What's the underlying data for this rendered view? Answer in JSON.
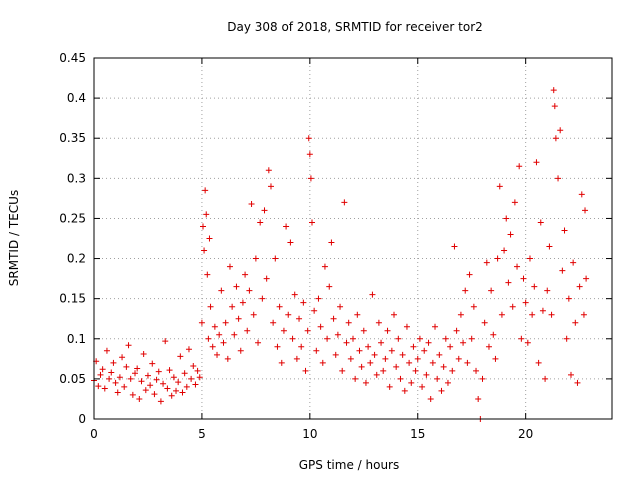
{
  "chart_data": {
    "type": "scatter",
    "title": "Day 308 of 2018, SRMTID for receiver tor2",
    "xlabel": "GPS time / hours",
    "ylabel": "SRMTID / TECUs",
    "xlim": [
      0,
      24
    ],
    "ylim": [
      0,
      0.45
    ],
    "xticks": [
      0,
      5,
      10,
      15,
      20
    ],
    "yticks": [
      0,
      0.05,
      0.1,
      0.15,
      0.2,
      0.25,
      0.3,
      0.35,
      0.4,
      0.45
    ],
    "ytick_labels": [
      "0",
      "0.05",
      "0.1",
      "0.15",
      "0.2",
      "0.25",
      "0.3",
      "0.35",
      "0.4",
      "0.45"
    ],
    "grid": true,
    "marker": "+",
    "marker_color": "#e00000",
    "series": [
      {
        "name": "SRMTID",
        "points": [
          [
            0.0,
            0.048
          ],
          [
            0.1,
            0.072
          ],
          [
            0.2,
            0.041
          ],
          [
            0.3,
            0.055
          ],
          [
            0.4,
            0.062
          ],
          [
            0.5,
            0.038
          ],
          [
            0.6,
            0.085
          ],
          [
            0.7,
            0.05
          ],
          [
            0.8,
            0.058
          ],
          [
            0.9,
            0.07
          ],
          [
            1.0,
            0.045
          ],
          [
            1.1,
            0.033
          ],
          [
            1.2,
            0.052
          ],
          [
            1.3,
            0.077
          ],
          [
            1.4,
            0.04
          ],
          [
            1.5,
            0.065
          ],
          [
            1.6,
            0.092
          ],
          [
            1.7,
            0.05
          ],
          [
            1.8,
            0.03
          ],
          [
            1.9,
            0.057
          ],
          [
            2.0,
            0.063
          ],
          [
            2.1,
            0.025
          ],
          [
            2.2,
            0.047
          ],
          [
            2.3,
            0.081
          ],
          [
            2.4,
            0.036
          ],
          [
            2.5,
            0.054
          ],
          [
            2.6,
            0.042
          ],
          [
            2.7,
            0.069
          ],
          [
            2.8,
            0.031
          ],
          [
            2.9,
            0.049
          ],
          [
            3.0,
            0.059
          ],
          [
            3.1,
            0.022
          ],
          [
            3.2,
            0.044
          ],
          [
            3.3,
            0.097
          ],
          [
            3.4,
            0.038
          ],
          [
            3.5,
            0.061
          ],
          [
            3.6,
            0.029
          ],
          [
            3.7,
            0.052
          ],
          [
            3.8,
            0.035
          ],
          [
            3.9,
            0.046
          ],
          [
            4.0,
            0.078
          ],
          [
            4.1,
            0.033
          ],
          [
            4.2,
            0.057
          ],
          [
            4.3,
            0.04
          ],
          [
            4.4,
            0.087
          ],
          [
            4.5,
            0.05
          ],
          [
            4.6,
            0.066
          ],
          [
            4.7,
            0.043
          ],
          [
            4.8,
            0.06
          ],
          [
            4.9,
            0.052
          ],
          [
            5.0,
            0.12
          ],
          [
            5.05,
            0.24
          ],
          [
            5.1,
            0.21
          ],
          [
            5.15,
            0.285
          ],
          [
            5.2,
            0.255
          ],
          [
            5.25,
            0.18
          ],
          [
            5.3,
            0.1
          ],
          [
            5.35,
            0.225
          ],
          [
            5.4,
            0.14
          ],
          [
            5.5,
            0.09
          ],
          [
            5.6,
            0.115
          ],
          [
            5.7,
            0.08
          ],
          [
            5.8,
            0.105
          ],
          [
            5.9,
            0.16
          ],
          [
            6.0,
            0.095
          ],
          [
            6.1,
            0.12
          ],
          [
            6.2,
            0.075
          ],
          [
            6.3,
            0.19
          ],
          [
            6.4,
            0.14
          ],
          [
            6.5,
            0.105
          ],
          [
            6.6,
            0.165
          ],
          [
            6.7,
            0.125
          ],
          [
            6.8,
            0.085
          ],
          [
            6.9,
            0.145
          ],
          [
            7.0,
            0.18
          ],
          [
            7.1,
            0.11
          ],
          [
            7.2,
            0.16
          ],
          [
            7.3,
            0.268
          ],
          [
            7.4,
            0.13
          ],
          [
            7.5,
            0.2
          ],
          [
            7.6,
            0.095
          ],
          [
            7.7,
            0.245
          ],
          [
            7.8,
            0.15
          ],
          [
            7.9,
            0.26
          ],
          [
            8.0,
            0.175
          ],
          [
            8.1,
            0.31
          ],
          [
            8.2,
            0.29
          ],
          [
            8.3,
            0.12
          ],
          [
            8.4,
            0.2
          ],
          [
            8.5,
            0.09
          ],
          [
            8.6,
            0.14
          ],
          [
            8.7,
            0.07
          ],
          [
            8.8,
            0.11
          ],
          [
            8.9,
            0.24
          ],
          [
            9.0,
            0.13
          ],
          [
            9.1,
            0.22
          ],
          [
            9.2,
            0.1
          ],
          [
            9.3,
            0.155
          ],
          [
            9.4,
            0.075
          ],
          [
            9.5,
            0.125
          ],
          [
            9.6,
            0.09
          ],
          [
            9.7,
            0.145
          ],
          [
            9.8,
            0.06
          ],
          [
            9.9,
            0.11
          ],
          [
            9.95,
            0.35
          ],
          [
            10.0,
            0.33
          ],
          [
            10.05,
            0.3
          ],
          [
            10.1,
            0.245
          ],
          [
            10.2,
            0.135
          ],
          [
            10.3,
            0.085
          ],
          [
            10.4,
            0.15
          ],
          [
            10.5,
            0.115
          ],
          [
            10.6,
            0.07
          ],
          [
            10.7,
            0.19
          ],
          [
            10.8,
            0.1
          ],
          [
            10.9,
            0.165
          ],
          [
            11.0,
            0.22
          ],
          [
            11.1,
            0.125
          ],
          [
            11.2,
            0.08
          ],
          [
            11.3,
            0.105
          ],
          [
            11.4,
            0.14
          ],
          [
            11.5,
            0.06
          ],
          [
            11.6,
            0.27
          ],
          [
            11.7,
            0.095
          ],
          [
            11.8,
            0.12
          ],
          [
            11.9,
            0.075
          ],
          [
            12.0,
            0.1
          ],
          [
            12.1,
            0.05
          ],
          [
            12.2,
            0.13
          ],
          [
            12.3,
            0.085
          ],
          [
            12.4,
            0.065
          ],
          [
            12.5,
            0.11
          ],
          [
            12.6,
            0.045
          ],
          [
            12.7,
            0.09
          ],
          [
            12.8,
            0.07
          ],
          [
            12.9,
            0.155
          ],
          [
            13.0,
            0.08
          ],
          [
            13.1,
            0.055
          ],
          [
            13.2,
            0.12
          ],
          [
            13.3,
            0.095
          ],
          [
            13.4,
            0.06
          ],
          [
            13.5,
            0.075
          ],
          [
            13.6,
            0.11
          ],
          [
            13.7,
            0.04
          ],
          [
            13.8,
            0.085
          ],
          [
            13.9,
            0.13
          ],
          [
            14.0,
            0.065
          ],
          [
            14.1,
            0.1
          ],
          [
            14.2,
            0.05
          ],
          [
            14.3,
            0.08
          ],
          [
            14.4,
            0.035
          ],
          [
            14.5,
            0.115
          ],
          [
            14.6,
            0.07
          ],
          [
            14.7,
            0.045
          ],
          [
            14.8,
            0.09
          ],
          [
            14.9,
            0.06
          ],
          [
            15.0,
            0.075
          ],
          [
            15.1,
            0.1
          ],
          [
            15.2,
            0.04
          ],
          [
            15.3,
            0.085
          ],
          [
            15.4,
            0.055
          ],
          [
            15.5,
            0.095
          ],
          [
            15.6,
            0.025
          ],
          [
            15.7,
            0.07
          ],
          [
            15.8,
            0.115
          ],
          [
            15.9,
            0.05
          ],
          [
            16.0,
            0.08
          ],
          [
            16.1,
            0.035
          ],
          [
            16.2,
            0.065
          ],
          [
            16.3,
            0.1
          ],
          [
            16.4,
            0.045
          ],
          [
            16.5,
            0.09
          ],
          [
            16.6,
            0.06
          ],
          [
            16.7,
            0.215
          ],
          [
            16.8,
            0.11
          ],
          [
            16.9,
            0.075
          ],
          [
            17.0,
            0.13
          ],
          [
            17.1,
            0.095
          ],
          [
            17.2,
            0.16
          ],
          [
            17.3,
            0.07
          ],
          [
            17.4,
            0.18
          ],
          [
            17.5,
            0.1
          ],
          [
            17.6,
            0.14
          ],
          [
            17.7,
            0.06
          ],
          [
            17.8,
            0.025
          ],
          [
            17.9,
            0.0
          ],
          [
            18.0,
            0.05
          ],
          [
            18.1,
            0.12
          ],
          [
            18.2,
            0.195
          ],
          [
            18.3,
            0.09
          ],
          [
            18.4,
            0.16
          ],
          [
            18.5,
            0.105
          ],
          [
            18.6,
            0.075
          ],
          [
            18.7,
            0.2
          ],
          [
            18.8,
            0.29
          ],
          [
            18.9,
            0.13
          ],
          [
            19.0,
            0.21
          ],
          [
            19.1,
            0.25
          ],
          [
            19.2,
            0.17
          ],
          [
            19.3,
            0.23
          ],
          [
            19.4,
            0.14
          ],
          [
            19.5,
            0.27
          ],
          [
            19.6,
            0.19
          ],
          [
            19.7,
            0.315
          ],
          [
            19.8,
            0.1
          ],
          [
            19.9,
            0.175
          ],
          [
            20.0,
            0.145
          ],
          [
            20.1,
            0.095
          ],
          [
            20.2,
            0.2
          ],
          [
            20.3,
            0.13
          ],
          [
            20.4,
            0.165
          ],
          [
            20.5,
            0.32
          ],
          [
            20.6,
            0.07
          ],
          [
            20.7,
            0.245
          ],
          [
            20.8,
            0.135
          ],
          [
            20.9,
            0.05
          ],
          [
            21.0,
            0.16
          ],
          [
            21.1,
            0.215
          ],
          [
            21.2,
            0.13
          ],
          [
            21.3,
            0.41
          ],
          [
            21.35,
            0.39
          ],
          [
            21.4,
            0.35
          ],
          [
            21.5,
            0.3
          ],
          [
            21.6,
            0.36
          ],
          [
            21.7,
            0.185
          ],
          [
            21.8,
            0.235
          ],
          [
            21.9,
            0.1
          ],
          [
            22.0,
            0.15
          ],
          [
            22.1,
            0.055
          ],
          [
            22.2,
            0.195
          ],
          [
            22.3,
            0.12
          ],
          [
            22.4,
            0.045
          ],
          [
            22.5,
            0.165
          ],
          [
            22.6,
            0.28
          ],
          [
            22.7,
            0.13
          ],
          [
            22.75,
            0.26
          ],
          [
            22.8,
            0.175
          ]
        ]
      }
    ]
  }
}
